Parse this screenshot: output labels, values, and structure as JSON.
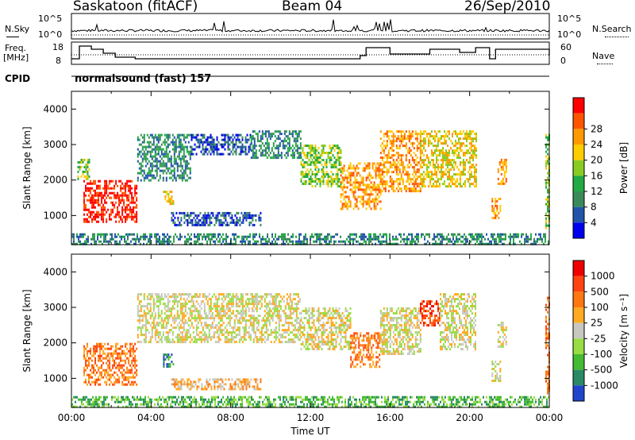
{
  "header": {
    "title": "Saskatoon (fitACF)",
    "beam": "Beam 04",
    "date": "26/Sep/2010"
  },
  "top_strip": {
    "nsky_label": "N.Sky",
    "nsearch_label": "N.Search",
    "freq_label_line1": "Freq.",
    "freq_label_line2": "[MHz]",
    "nave_label": "Nave",
    "cpid_label": "CPID",
    "program": "normalsound (fast) 157",
    "noise_ticks": [
      "10^5",
      "10^0"
    ],
    "freq_ticks": [
      "18",
      "8"
    ],
    "nave_ticks": [
      "60",
      "0"
    ]
  },
  "chart_data": [
    {
      "type": "heatmap",
      "title": "",
      "xlabel": "",
      "ylabel": "Slant Range [km]",
      "xlim": [
        0,
        24
      ],
      "ylim": [
        180,
        4500
      ],
      "y_ticks": [
        1000,
        2000,
        3000,
        4000
      ],
      "colorbar": {
        "label": "Power [dB]",
        "ticks": [
          "4",
          "8",
          "12",
          "16",
          "20",
          "24",
          "28"
        ],
        "colors": [
          "#0000ee",
          "#2255aa",
          "#3a8a5a",
          "#22aa44",
          "#88cc22",
          "#ffcc00",
          "#ff9900",
          "#ff5500",
          "#ff0000"
        ]
      },
      "regions": [
        {
          "t0": 0.6,
          "t1": 3.3,
          "r0": 800,
          "r1": 2000,
          "level": 8
        },
        {
          "t0": 0.3,
          "t1": 0.9,
          "r0": 2000,
          "r1": 2600,
          "level": 4
        },
        {
          "t0": 3.3,
          "t1": 6.0,
          "r0": 2000,
          "r1": 3300,
          "level": 2
        },
        {
          "t0": 6.0,
          "t1": 9.0,
          "r0": 2700,
          "r1": 3300,
          "level": 1
        },
        {
          "t0": 9.0,
          "t1": 11.5,
          "r0": 2600,
          "r1": 3400,
          "level": 2
        },
        {
          "t0": 11.5,
          "t1": 13.5,
          "r0": 1800,
          "r1": 3000,
          "level": 4
        },
        {
          "t0": 13.5,
          "t1": 15.5,
          "r0": 1200,
          "r1": 2500,
          "level": 6
        },
        {
          "t0": 15.5,
          "t1": 17.5,
          "r0": 1700,
          "r1": 3400,
          "level": 6
        },
        {
          "t0": 17.5,
          "t1": 20.3,
          "r0": 1800,
          "r1": 3400,
          "level": 5
        },
        {
          "t0": 4.6,
          "t1": 5.1,
          "r0": 1300,
          "r1": 1700,
          "level": 5
        },
        {
          "t0": 5.0,
          "t1": 9.5,
          "r0": 700,
          "r1": 1100,
          "level": 1
        },
        {
          "t0": 0.0,
          "t1": 24.0,
          "r0": 180,
          "r1": 500,
          "level": 2
        },
        {
          "t0": 21.1,
          "t1": 21.5,
          "r0": 900,
          "r1": 1500,
          "level": 6
        },
        {
          "t0": 21.4,
          "t1": 21.8,
          "r0": 1900,
          "r1": 2600,
          "level": 6
        },
        {
          "t0": 23.8,
          "t1": 24.0,
          "r0": 600,
          "r1": 3300,
          "level": 4
        }
      ]
    },
    {
      "type": "heatmap",
      "title": "",
      "xlabel": "Time UT",
      "ylabel": "Slant Range [km]",
      "xlim": [
        0,
        24
      ],
      "ylim": [
        180,
        4500
      ],
      "x_ticks": [
        "00:00",
        "04:00",
        "08:00",
        "12:00",
        "16:00",
        "20:00",
        "00:00"
      ],
      "y_ticks": [
        1000,
        2000,
        3000,
        4000
      ],
      "colorbar": {
        "label": "Velocity [m s⁻¹]",
        "ticks": [
          "1000",
          "500",
          "100",
          "25",
          "-25",
          "-100",
          "-500",
          "-1000"
        ],
        "colors": [
          "#2244cc",
          "#2a8a66",
          "#44bb33",
          "#99dd44",
          "#c8c8c0",
          "#ffaa22",
          "#ff7711",
          "#ff4411",
          "#ee0000"
        ]
      },
      "regions": [
        {
          "t0": 0.6,
          "t1": 3.3,
          "r0": 800,
          "r1": 2000,
          "level": 6
        },
        {
          "t0": 3.3,
          "t1": 11.5,
          "r0": 2000,
          "r1": 3400,
          "level": 4
        },
        {
          "t0": 11.5,
          "t1": 14.0,
          "r0": 1800,
          "r1": 3000,
          "level": 4
        },
        {
          "t0": 14.0,
          "t1": 15.5,
          "r0": 1300,
          "r1": 2300,
          "level": 6
        },
        {
          "t0": 15.5,
          "t1": 17.5,
          "r0": 1700,
          "r1": 3000,
          "level": 4
        },
        {
          "t0": 17.5,
          "t1": 18.5,
          "r0": 2500,
          "r1": 3200,
          "level": 7
        },
        {
          "t0": 18.5,
          "t1": 20.3,
          "r0": 1800,
          "r1": 3400,
          "level": 4
        },
        {
          "t0": 4.6,
          "t1": 5.1,
          "r0": 1300,
          "r1": 1700,
          "level": 1
        },
        {
          "t0": 5.0,
          "t1": 9.5,
          "r0": 700,
          "r1": 1000,
          "level": 5
        },
        {
          "t0": 0.0,
          "t1": 24.0,
          "r0": 180,
          "r1": 500,
          "level": 2
        },
        {
          "t0": 21.1,
          "t1": 21.5,
          "r0": 900,
          "r1": 1500,
          "level": 4
        },
        {
          "t0": 21.4,
          "t1": 21.8,
          "r0": 1900,
          "r1": 2600,
          "level": 4
        },
        {
          "t0": 23.8,
          "t1": 24.0,
          "r0": 600,
          "r1": 3300,
          "level": 6
        }
      ]
    }
  ]
}
